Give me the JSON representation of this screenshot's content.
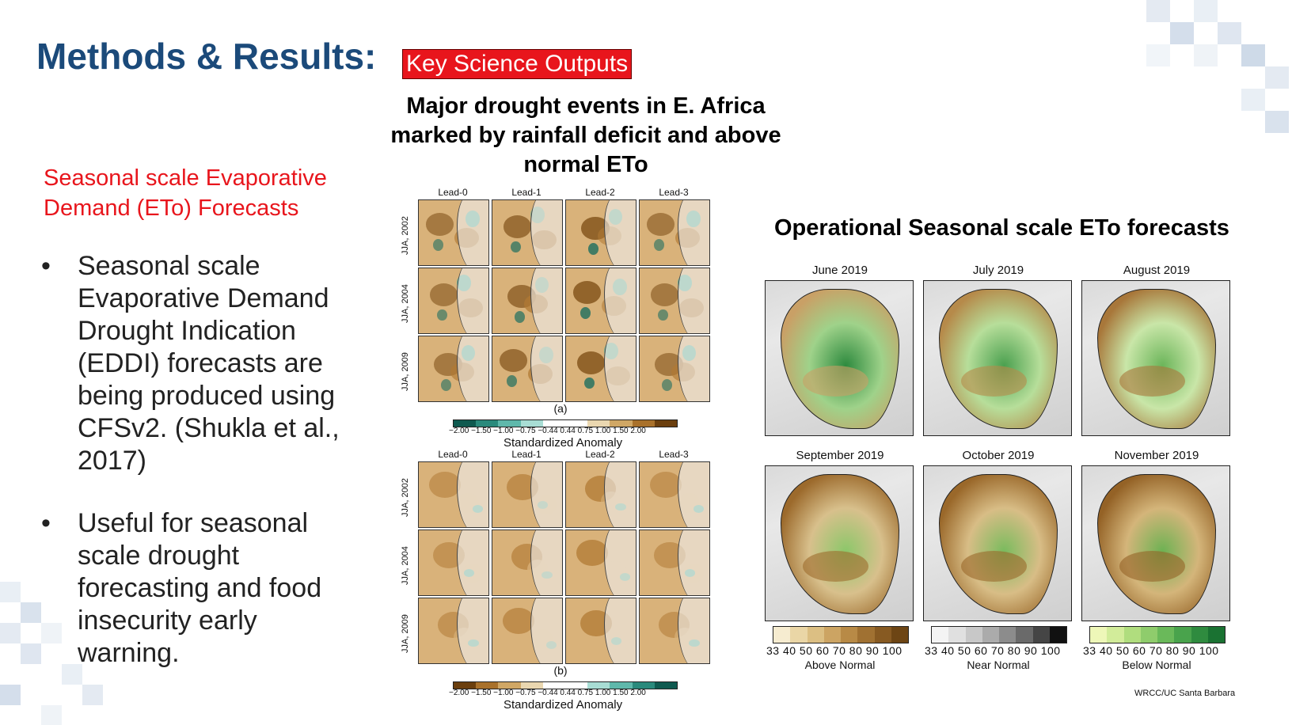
{
  "header": {
    "title": "Methods & Results:",
    "badge": "Key Science Outputs"
  },
  "left": {
    "subheading": "Seasonal scale Evaporative Demand (ETo) Forecasts",
    "bullets": [
      "Seasonal scale Evaporative Demand Drought Indication (EDDI) forecasts are being produced using CFSv2. (Shukla et al., 2017)",
      "Useful for seasonal scale drought forecasting and food insecurity early warning."
    ],
    "bullet_glyph": "•"
  },
  "center": {
    "title": "Major drought events in E. Africa marked by rainfall deficit and above normal ETo",
    "lead_labels": [
      "Lead-0",
      "Lead-1",
      "Lead-2",
      "Lead-3"
    ],
    "row_labels": [
      "JJA, 2002",
      "JJA, 2004",
      "JJA, 2009"
    ],
    "panel_a_label": "(a)",
    "panel_b_label": "(b)",
    "colorbar_ticks": "−2.00 −1.50 −1.00 −0.75 −0.44  0.44   0.75   1.00   1.50   2.00",
    "colorbar_title": "Standardized Anomaly",
    "colors": {
      "brown_dark": "#7a4a12",
      "brown": "#b07a34",
      "tan": "#d9b27a",
      "teal": "#4fb3a4",
      "teal_dark": "#0f6a5e"
    }
  },
  "right": {
    "title": "Operational Seasonal scale ETo forecasts",
    "months": [
      "June 2019",
      "July 2019",
      "August 2019",
      "September 2019",
      "October 2019",
      "November 2019"
    ],
    "legend_ticks": "33  40  50  60  70  80  90 100",
    "legends": [
      "Above Normal",
      "Near Normal",
      "Below Normal"
    ],
    "credit": "WRCC/UC Santa Barbara",
    "colors": {
      "above_normal": "#8a5a1e",
      "near_normal": "#7d7d7d",
      "below_normal": "#1f8a3a"
    }
  }
}
